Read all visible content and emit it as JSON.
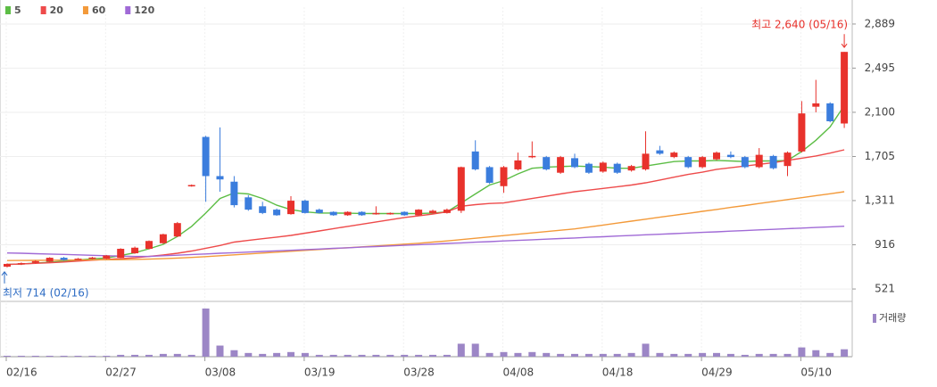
{
  "chart_data": {
    "type": "candlestick",
    "categories": [
      "02/16",
      null,
      null,
      null,
      null,
      null,
      null,
      "02/27",
      null,
      null,
      null,
      null,
      null,
      null,
      "03/08",
      null,
      null,
      null,
      null,
      null,
      null,
      "03/19",
      null,
      null,
      null,
      null,
      null,
      null,
      "03/28",
      null,
      null,
      null,
      null,
      null,
      null,
      "04/08",
      null,
      null,
      null,
      null,
      null,
      null,
      "04/18",
      null,
      null,
      null,
      null,
      null,
      null,
      "04/29",
      null,
      null,
      null,
      null,
      null,
      null,
      "05/10",
      null,
      null,
      null
    ],
    "open": [
      720,
      740,
      755,
      765,
      800,
      785,
      790,
      792,
      800,
      840,
      880,
      930,
      990,
      1440,
      1880,
      1530,
      1480,
      1340,
      1260,
      1230,
      1190,
      1310,
      1230,
      1210,
      1180,
      1210,
      1190,
      1190,
      1210,
      1180,
      1200,
      1200,
      1220,
      1750,
      1610,
      1440,
      1590,
      1700,
      1700,
      1560,
      1690,
      1640,
      1570,
      1640,
      1580,
      1590,
      1760,
      1700,
      1700,
      1610,
      1680,
      1720,
      1700,
      1610,
      1710,
      1620,
      1750,
      2150,
      2180,
      2000
    ],
    "high": [
      750,
      758,
      778,
      805,
      808,
      798,
      808,
      825,
      885,
      900,
      955,
      1015,
      1120,
      1455,
      1890,
      1965,
      1530,
      1360,
      1300,
      1240,
      1350,
      1320,
      1240,
      1215,
      1215,
      1215,
      1260,
      1205,
      1215,
      1235,
      1230,
      1240,
      1615,
      1850,
      1620,
      1620,
      1740,
      1840,
      1710,
      1710,
      1730,
      1650,
      1660,
      1650,
      1630,
      1930,
      1800,
      1750,
      1710,
      1710,
      1750,
      1750,
      1710,
      1780,
      1720,
      1750,
      2200,
      2390,
      2190,
      2640
    ],
    "low": [
      714,
      735,
      748,
      760,
      775,
      780,
      785,
      788,
      798,
      835,
      875,
      925,
      985,
      1435,
      1300,
      1390,
      1250,
      1220,
      1190,
      1175,
      1185,
      1195,
      1195,
      1175,
      1175,
      1175,
      1185,
      1185,
      1175,
      1175,
      1195,
      1195,
      1200,
      1580,
      1460,
      1380,
      1580,
      1690,
      1580,
      1550,
      1600,
      1550,
      1560,
      1550,
      1570,
      1580,
      1720,
      1690,
      1600,
      1600,
      1670,
      1690,
      1600,
      1600,
      1590,
      1530,
      1740,
      2100,
      2010,
      1960
    ],
    "close": [
      745,
      752,
      770,
      800,
      780,
      792,
      802,
      820,
      880,
      890,
      950,
      1010,
      1110,
      1450,
      1530,
      1500,
      1270,
      1230,
      1200,
      1180,
      1310,
      1200,
      1200,
      1180,
      1210,
      1180,
      1200,
      1200,
      1180,
      1230,
      1220,
      1230,
      1610,
      1590,
      1470,
      1610,
      1670,
      1710,
      1590,
      1700,
      1610,
      1560,
      1650,
      1560,
      1620,
      1730,
      1730,
      1740,
      1610,
      1700,
      1740,
      1700,
      1610,
      1720,
      1600,
      1740,
      2090,
      2180,
      2020,
      2640
    ],
    "up_color": "#e8322c",
    "down_color": "#3b7ddd",
    "series": [
      {
        "name": "5",
        "color": "#5cbd45",
        "values": [
          740,
          745,
          752,
          760,
          770,
          780,
          790,
          798,
          820,
          845,
          880,
          920,
          990,
          1080,
          1200,
          1330,
          1380,
          1370,
          1330,
          1270,
          1230,
          1210,
          1200,
          1200,
          1198,
          1196,
          1195,
          1195,
          1195,
          1195,
          1200,
          1210,
          1290,
          1370,
          1450,
          1490,
          1550,
          1600,
          1610,
          1615,
          1620,
          1615,
          1610,
          1600,
          1600,
          1620,
          1640,
          1660,
          1665,
          1665,
          1670,
          1665,
          1660,
          1665,
          1665,
          1670,
          1750,
          1850,
          1970,
          2160
        ]
      },
      {
        "name": "20",
        "color": "#ee4b4b",
        "values": [
          740,
          745,
          750,
          755,
          762,
          770,
          778,
          785,
          792,
          800,
          812,
          825,
          840,
          860,
          885,
          910,
          940,
          955,
          970,
          985,
          1000,
          1020,
          1040,
          1060,
          1080,
          1100,
          1120,
          1140,
          1160,
          1175,
          1190,
          1210,
          1260,
          1275,
          1285,
          1290,
          1310,
          1330,
          1350,
          1370,
          1390,
          1405,
          1420,
          1435,
          1450,
          1470,
          1495,
          1520,
          1545,
          1565,
          1590,
          1605,
          1620,
          1635,
          1650,
          1670,
          1690,
          1710,
          1735,
          1765
        ]
      },
      {
        "name": "60",
        "color": "#f39a3a",
        "values": [
          775,
          776,
          777,
          778,
          779,
          780,
          781,
          782,
          783,
          785,
          788,
          792,
          797,
          803,
          810,
          818,
          826,
          834,
          842,
          850,
          858,
          866,
          874,
          882,
          890,
          898,
          906,
          914,
          922,
          930,
          940,
          950,
          962,
          974,
          986,
          998,
          1010,
          1022,
          1034,
          1046,
          1058,
          1075,
          1092,
          1110,
          1127,
          1145,
          1162,
          1180,
          1197,
          1215,
          1232,
          1250,
          1267,
          1285,
          1302,
          1320,
          1337,
          1355,
          1372,
          1390
        ]
      },
      {
        "name": "120",
        "color": "#a06ad6",
        "values": [
          843,
          840,
          836,
          833,
          830,
          826,
          822,
          818,
          815,
          812,
          812,
          818,
          823,
          829,
          834,
          840,
          845,
          851,
          856,
          862,
          867,
          873,
          878,
          884,
          889,
          895,
          900,
          906,
          911,
          917,
          922,
          928,
          933,
          939,
          944,
          950,
          955,
          961,
          966,
          972,
          977,
          983,
          988,
          994,
          999,
          1005,
          1010,
          1016,
          1021,
          1027,
          1032,
          1038,
          1043,
          1049,
          1054,
          1060,
          1065,
          1071,
          1076,
          1082
        ]
      }
    ],
    "volume": {
      "name": "거래량",
      "color": "#9c86c6",
      "values": [
        1,
        1,
        1,
        1,
        1,
        1,
        1,
        1,
        2,
        2,
        2,
        3,
        3,
        2,
        52,
        12,
        7,
        4,
        3,
        4,
        5,
        4,
        2,
        2,
        2,
        2,
        2,
        2,
        2,
        2,
        2,
        2,
        14,
        14,
        4,
        5,
        4,
        5,
        4,
        3,
        3,
        3,
        3,
        3,
        4,
        14,
        4,
        3,
        3,
        4,
        4,
        3,
        2,
        3,
        3,
        3,
        10,
        7,
        4,
        8
      ]
    },
    "ylim": [
      410,
      3040
    ],
    "yticks": [
      521,
      916,
      {
        "value": 1311,
        "label": "1,311"
      },
      {
        "value": 1705,
        "label": "1,705"
      },
      {
        "value": 2100,
        "label": "2,100"
      },
      {
        "value": 2495,
        "label": "2,495"
      },
      {
        "value": 2889,
        "label": "2,889"
      }
    ],
    "grid": true,
    "annotations": [
      {
        "text": "최고 2,640 (05/16)",
        "color": "#e8322c"
      },
      {
        "text": "최저 714 (02/16)",
        "color": "#2e6cc4"
      }
    ]
  }
}
